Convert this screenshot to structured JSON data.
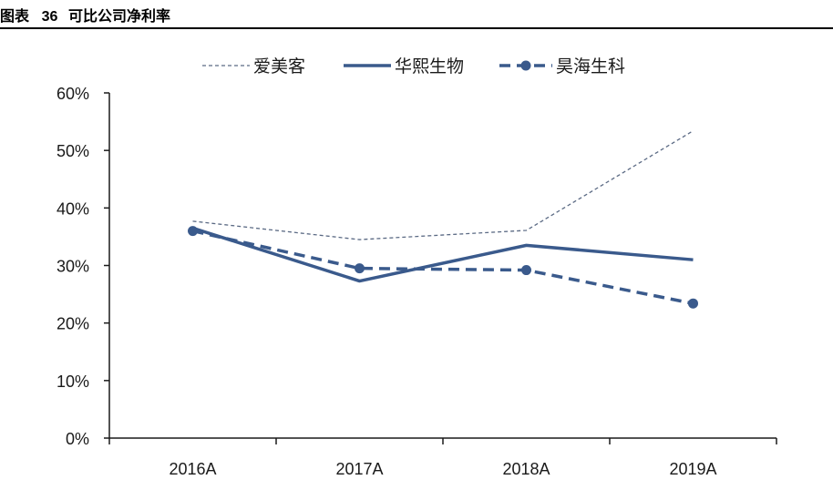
{
  "figure": {
    "label": "图表",
    "number": "36",
    "caption": "可比公司净利率"
  },
  "colors": {
    "series_main": "#3a5a8c",
    "series_dashed_thin": "#5b6a84",
    "axis": "#1a1a1a"
  },
  "chart_data": {
    "type": "line",
    "categories": [
      "2016A",
      "2017A",
      "2018A",
      "2019A"
    ],
    "ylim": [
      0,
      60
    ],
    "yticks": [
      0,
      10,
      20,
      30,
      40,
      50,
      60
    ],
    "ytick_labels": [
      "0%",
      "10%",
      "20%",
      "30%",
      "40%",
      "50%",
      "60%"
    ],
    "legend_position": "top",
    "grid": false,
    "series": [
      {
        "name": "爱美客",
        "style": "thin-dashed",
        "values": [
          37.7,
          34.5,
          36.1,
          53.4
        ]
      },
      {
        "name": "华熙生物",
        "style": "solid",
        "values": [
          36.5,
          27.3,
          33.5,
          31.0
        ]
      },
      {
        "name": "昊海生科",
        "style": "dashed-markers",
        "values": [
          36.0,
          29.5,
          29.2,
          23.4
        ]
      }
    ]
  }
}
